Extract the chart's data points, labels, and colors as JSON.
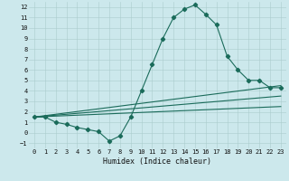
{
  "background_color": "#cce8ec",
  "grid_color": "#aacccc",
  "line_color": "#1a6b5a",
  "xlabel": "Humidex (Indice chaleur)",
  "xlim": [
    -0.5,
    23.5
  ],
  "ylim": [
    -1.5,
    12.5
  ],
  "xticks": [
    0,
    1,
    2,
    3,
    4,
    5,
    6,
    7,
    8,
    9,
    10,
    11,
    12,
    13,
    14,
    15,
    16,
    17,
    18,
    19,
    20,
    21,
    22,
    23
  ],
  "yticks": [
    -1,
    0,
    1,
    2,
    3,
    4,
    5,
    6,
    7,
    8,
    9,
    10,
    11,
    12
  ],
  "line1_x": [
    0,
    1,
    2,
    3,
    4,
    5,
    6,
    7,
    8,
    9,
    10,
    11,
    12,
    13,
    14,
    15,
    16,
    17,
    18,
    19,
    20,
    21,
    22,
    23
  ],
  "line1_y": [
    1.5,
    1.5,
    1.0,
    0.8,
    0.5,
    0.3,
    0.1,
    -0.8,
    -0.3,
    1.5,
    4.0,
    6.5,
    9.0,
    11.0,
    11.8,
    12.2,
    11.3,
    10.3,
    7.3,
    6.0,
    5.0,
    5.0,
    4.3,
    4.3
  ],
  "line2_x": [
    0,
    23
  ],
  "line2_y": [
    1.5,
    4.5
  ],
  "line3_x": [
    0,
    23
  ],
  "line3_y": [
    1.5,
    3.5
  ],
  "line4_x": [
    0,
    23
  ],
  "line4_y": [
    1.5,
    2.5
  ],
  "marker": "D",
  "markersize": 2.2,
  "linewidth": 0.8,
  "tick_fontsize": 5.0,
  "xlabel_fontsize": 6.0
}
